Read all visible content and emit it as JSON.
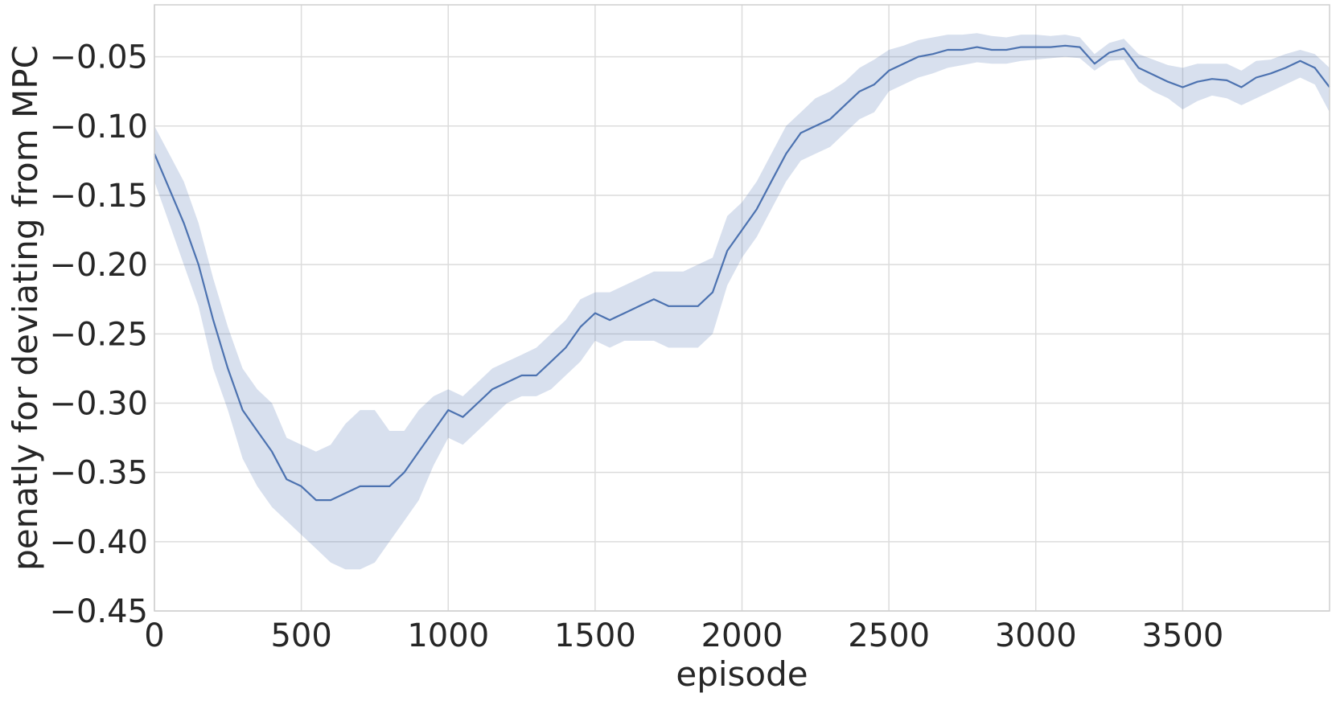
{
  "chart_data": {
    "type": "line",
    "title": "",
    "xlabel": "episode",
    "ylabel": "penatly for deviating from MPC",
    "xlim": [
      0,
      4000
    ],
    "ylim": [
      -0.45,
      -0.0125
    ],
    "x_ticks": [
      0,
      500,
      1000,
      1500,
      2000,
      2500,
      3000,
      3500
    ],
    "x_tick_labels": [
      "0",
      "500",
      "1000",
      "1500",
      "2000",
      "2500",
      "3000",
      "3500"
    ],
    "y_ticks": [
      -0.45,
      -0.4,
      -0.35,
      -0.3,
      -0.25,
      -0.2,
      -0.15,
      -0.1,
      -0.05
    ],
    "y_tick_labels": [
      "−0.45",
      "−0.40",
      "−0.35",
      "−0.30",
      "−0.25",
      "−0.20",
      "−0.15",
      "−0.10",
      "−0.05"
    ],
    "grid": true,
    "colors": {
      "line": "#4c72b0",
      "band": "#4c72b0",
      "grid": "#dcdcdc",
      "text": "#262626"
    },
    "series": [
      {
        "x": [
          0,
          50,
          100,
          150,
          200,
          250,
          300,
          350,
          400,
          450,
          500,
          550,
          600,
          650,
          700,
          750,
          800,
          850,
          900,
          950,
          1000,
          1050,
          1100,
          1150,
          1200,
          1250,
          1300,
          1350,
          1400,
          1450,
          1500,
          1550,
          1600,
          1650,
          1700,
          1750,
          1800,
          1850,
          1900,
          1950,
          2000,
          2050,
          2100,
          2150,
          2200,
          2250,
          2300,
          2350,
          2400,
          2450,
          2500,
          2550,
          2600,
          2650,
          2700,
          2750,
          2800,
          2850,
          2900,
          2950,
          3000,
          3050,
          3100,
          3150,
          3200,
          3250,
          3300,
          3350,
          3400,
          3450,
          3500,
          3550,
          3600,
          3650,
          3700,
          3750,
          3800,
          3850,
          3900,
          3950,
          4000
        ],
        "values": [
          -0.12,
          -0.145,
          -0.17,
          -0.2,
          -0.24,
          -0.275,
          -0.305,
          -0.32,
          -0.335,
          -0.355,
          -0.36,
          -0.37,
          -0.37,
          -0.365,
          -0.36,
          -0.36,
          -0.36,
          -0.35,
          -0.335,
          -0.32,
          -0.305,
          -0.31,
          -0.3,
          -0.29,
          -0.285,
          -0.28,
          -0.28,
          -0.27,
          -0.26,
          -0.245,
          -0.235,
          -0.24,
          -0.235,
          -0.23,
          -0.225,
          -0.23,
          -0.23,
          -0.23,
          -0.22,
          -0.19,
          -0.175,
          -0.16,
          -0.14,
          -0.12,
          -0.105,
          -0.1,
          -0.095,
          -0.085,
          -0.075,
          -0.07,
          -0.06,
          -0.055,
          -0.05,
          -0.048,
          -0.045,
          -0.045,
          -0.043,
          -0.045,
          -0.045,
          -0.043,
          -0.043,
          -0.043,
          -0.042,
          -0.043,
          -0.055,
          -0.047,
          -0.044,
          -0.058,
          -0.063,
          -0.068,
          -0.072,
          -0.068,
          -0.066,
          -0.067,
          -0.072,
          -0.065,
          -0.062,
          -0.058,
          -0.053,
          -0.058,
          -0.072
        ],
        "lower": [
          -0.14,
          -0.17,
          -0.2,
          -0.23,
          -0.275,
          -0.305,
          -0.34,
          -0.36,
          -0.375,
          -0.385,
          -0.395,
          -0.405,
          -0.415,
          -0.42,
          -0.42,
          -0.415,
          -0.4,
          -0.385,
          -0.37,
          -0.345,
          -0.325,
          -0.33,
          -0.32,
          -0.31,
          -0.3,
          -0.295,
          -0.295,
          -0.29,
          -0.28,
          -0.27,
          -0.255,
          -0.26,
          -0.255,
          -0.255,
          -0.255,
          -0.26,
          -0.26,
          -0.26,
          -0.25,
          -0.215,
          -0.195,
          -0.18,
          -0.16,
          -0.14,
          -0.125,
          -0.12,
          -0.115,
          -0.105,
          -0.095,
          -0.09,
          -0.075,
          -0.07,
          -0.065,
          -0.062,
          -0.058,
          -0.056,
          -0.054,
          -0.055,
          -0.055,
          -0.053,
          -0.052,
          -0.051,
          -0.05,
          -0.051,
          -0.06,
          -0.053,
          -0.052,
          -0.068,
          -0.075,
          -0.08,
          -0.088,
          -0.082,
          -0.078,
          -0.08,
          -0.085,
          -0.08,
          -0.075,
          -0.07,
          -0.065,
          -0.07,
          -0.09
        ],
        "upper": [
          -0.1,
          -0.12,
          -0.14,
          -0.17,
          -0.21,
          -0.245,
          -0.275,
          -0.29,
          -0.3,
          -0.325,
          -0.33,
          -0.335,
          -0.33,
          -0.315,
          -0.305,
          -0.305,
          -0.32,
          -0.32,
          -0.305,
          -0.295,
          -0.29,
          -0.295,
          -0.285,
          -0.275,
          -0.27,
          -0.265,
          -0.26,
          -0.25,
          -0.24,
          -0.225,
          -0.22,
          -0.22,
          -0.215,
          -0.21,
          -0.205,
          -0.205,
          -0.205,
          -0.2,
          -0.195,
          -0.165,
          -0.155,
          -0.14,
          -0.12,
          -0.1,
          -0.09,
          -0.08,
          -0.075,
          -0.068,
          -0.058,
          -0.052,
          -0.045,
          -0.042,
          -0.038,
          -0.036,
          -0.034,
          -0.034,
          -0.033,
          -0.035,
          -0.036,
          -0.034,
          -0.034,
          -0.035,
          -0.034,
          -0.036,
          -0.048,
          -0.04,
          -0.037,
          -0.048,
          -0.052,
          -0.056,
          -0.058,
          -0.055,
          -0.055,
          -0.055,
          -0.06,
          -0.053,
          -0.052,
          -0.048,
          -0.045,
          -0.048,
          -0.058
        ]
      }
    ]
  }
}
